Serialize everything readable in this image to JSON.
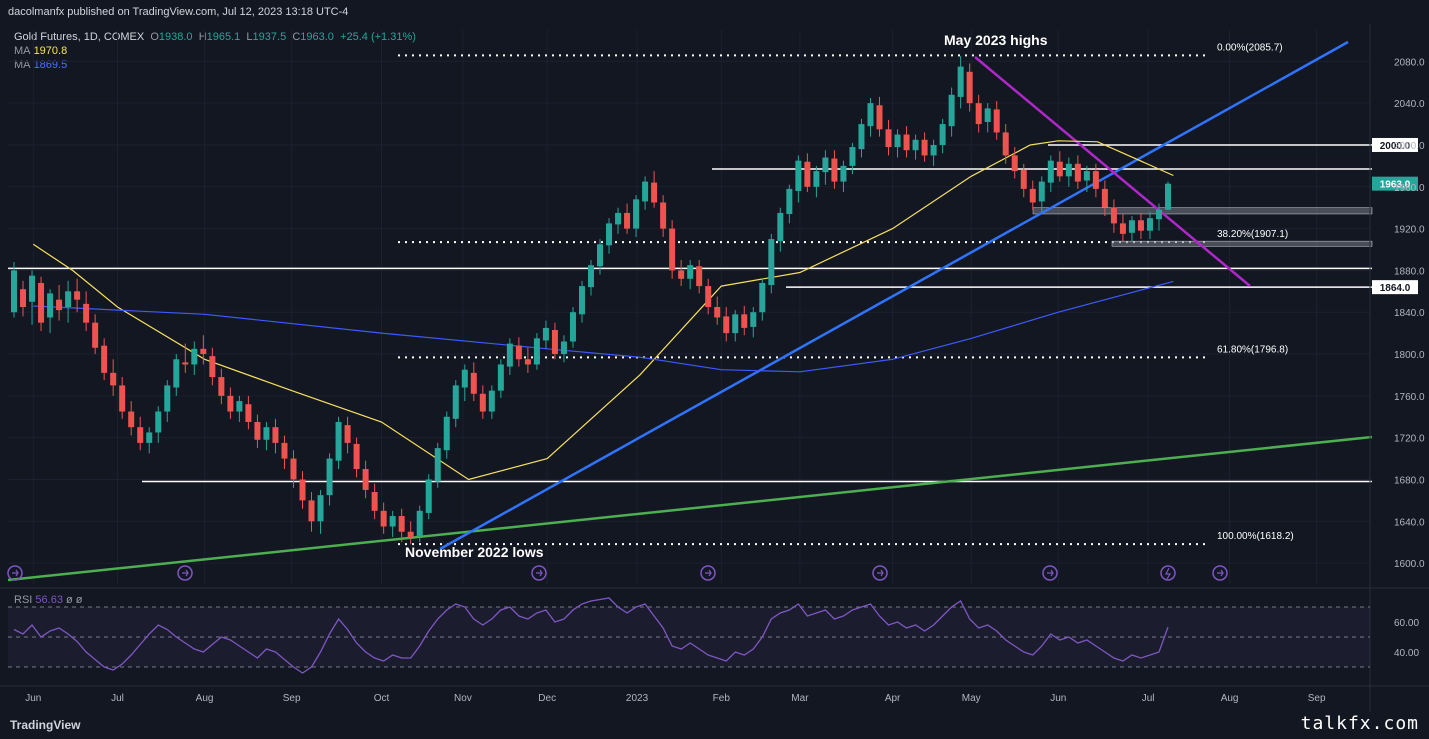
{
  "header": {
    "published": "dacolmanfx published on TradingView.com, Jul 12, 2023 13:18 UTC-4"
  },
  "legend": {
    "symbol": "Gold Futures, 1D, COMEX",
    "o_label": "O",
    "o": "1938.0",
    "h_label": "H",
    "h": "1965.1",
    "l_label": "L",
    "l": "1937.5",
    "c_label": "C",
    "c": "1963.0",
    "change": "+25.4 (+1.31%)",
    "ma1_label": "MA",
    "ma1": "1970.8",
    "ma2_label": "MA",
    "ma2": "1869.5"
  },
  "rsi_legend": {
    "label": "RSI",
    "value": "56.63",
    "extra": "ø  ø"
  },
  "footer": {
    "logo": "TradingView",
    "watermark": "talkfx.com"
  },
  "colors": {
    "background": "#131722",
    "up": "#26a69a",
    "down": "#ef5350",
    "ma50": "#f7e05c",
    "ma200": "#3d5afe",
    "uptrend": "#2f74ff",
    "downtrend": "#b027c9",
    "longtrend": "#4caf50",
    "rsi": "#7e57c2"
  },
  "chart_data": {
    "type": "candlestick",
    "title": "Gold Futures, 1D, COMEX",
    "price_axis": {
      "ylim": [
        1580,
        2110
      ],
      "ticks": [
        1600.0,
        1640.0,
        1680.0,
        1720.0,
        1760.0,
        1800.0,
        1840.0,
        1880.0,
        1920.0,
        1960.0,
        2000.0,
        2040.0,
        2080.0
      ]
    },
    "time_axis": {
      "labels": [
        "Jun",
        "Jul",
        "Aug",
        "Sep",
        "Oct",
        "Nov",
        "Dec",
        "2023",
        "Feb",
        "Mar",
        "Apr",
        "May",
        "Jun",
        "Jul",
        "Aug",
        "Sep"
      ]
    },
    "current_price": "1963.0",
    "price_labels": [
      "2000.0",
      "1864.0"
    ],
    "fibonacci": [
      {
        "label": "0.00%(2085.7)",
        "value": 2085.7
      },
      {
        "label": "38.20%(1907.1)",
        "value": 1907.1
      },
      {
        "label": "61.80%(1796.8)",
        "value": 1796.8
      },
      {
        "label": "100.00%(1618.2)",
        "value": 1618.2
      }
    ],
    "horizontal_levels": [
      2000.0,
      1977.0,
      1882.0,
      1864.0,
      1678.0
    ],
    "zones": [
      [
        1934,
        1940
      ],
      [
        1903,
        1908
      ]
    ],
    "annotations": [
      "May 2023 highs",
      "November 2022 lows"
    ],
    "series": [
      {
        "name": "MA",
        "last": 1970.8,
        "points": [
          [
            "Jun 1 2022",
            1905
          ],
          [
            "Jun 15 2022",
            1880
          ],
          [
            "Jul 1 2022",
            1845
          ],
          [
            "Aug 1 2022",
            1795
          ],
          [
            "Sep 1 2022",
            1765
          ],
          [
            "Oct 3 2022",
            1735
          ],
          [
            "Nov 3 2022",
            1680
          ],
          [
            "Dec 1 2022",
            1700
          ],
          [
            "Jan 3 2023",
            1780
          ],
          [
            "Feb 1 2023",
            1865
          ],
          [
            "Mar 1 2023",
            1878
          ],
          [
            "Apr 3 2023",
            1920
          ],
          [
            "May 1 2023",
            1970
          ],
          [
            "May 22 2023",
            2000
          ],
          [
            "Jun 1 2023",
            2004
          ],
          [
            "Jun 15 2023",
            2003
          ],
          [
            "Jul 12 2023",
            1970.8
          ]
        ]
      },
      {
        "name": "MA",
        "last": 1869.5,
        "points": [
          [
            "Jun 1 2022",
            1846
          ],
          [
            "Aug 1 2022",
            1838
          ],
          [
            "Oct 3 2022",
            1820
          ],
          [
            "Dec 1 2022",
            1805
          ],
          [
            "Jan 3 2023",
            1797
          ],
          [
            "Feb 1 2023",
            1785
          ],
          [
            "Mar 1 2023",
            1783
          ],
          [
            "Apr 3 2023",
            1795
          ],
          [
            "May 1 2023",
            1815
          ],
          [
            "Jun 1 2023",
            1840
          ],
          [
            "Jul 12 2023",
            1869.5
          ]
        ]
      }
    ],
    "candles": [
      [
        1840,
        1880,
        1860,
        1888,
        1835
      ],
      [
        1862,
        1845,
        1868,
        1870,
        1836
      ],
      [
        1850,
        1875,
        1835,
        1880,
        1828
      ],
      [
        1868,
        1830,
        1872,
        1874,
        1822
      ],
      [
        1835,
        1858,
        1830,
        1862,
        1820
      ],
      [
        1852,
        1842,
        1860,
        1866,
        1832
      ],
      [
        1845,
        1860,
        1838,
        1870,
        1830
      ],
      [
        1860,
        1852,
        1870,
        1872,
        1840
      ],
      [
        1848,
        1830,
        1856,
        1860,
        1822
      ],
      [
        1830,
        1806,
        1835,
        1838,
        1800
      ],
      [
        1808,
        1782,
        1812,
        1815,
        1775
      ],
      [
        1782,
        1770,
        1790,
        1795,
        1760
      ],
      [
        1770,
        1745,
        1775,
        1778,
        1738
      ],
      [
        1745,
        1730,
        1750,
        1755,
        1722
      ],
      [
        1730,
        1715,
        1735,
        1740,
        1708
      ],
      [
        1715,
        1725,
        1710,
        1730,
        1705
      ],
      [
        1725,
        1745,
        1720,
        1750,
        1715
      ],
      [
        1745,
        1770,
        1740,
        1775,
        1735
      ],
      [
        1768,
        1795,
        1765,
        1800,
        1760
      ],
      [
        1792,
        1790,
        1805,
        1810,
        1782
      ],
      [
        1790,
        1805,
        1785,
        1812,
        1780
      ],
      [
        1805,
        1800,
        1815,
        1818,
        1790
      ],
      [
        1798,
        1778,
        1802,
        1806,
        1770
      ],
      [
        1778,
        1760,
        1782,
        1786,
        1752
      ],
      [
        1760,
        1745,
        1765,
        1768,
        1738
      ],
      [
        1745,
        1755,
        1740,
        1760,
        1735
      ],
      [
        1752,
        1735,
        1756,
        1760,
        1728
      ],
      [
        1735,
        1718,
        1740,
        1742,
        1710
      ],
      [
        1718,
        1730,
        1712,
        1735,
        1708
      ],
      [
        1730,
        1715,
        1734,
        1738,
        1705
      ],
      [
        1715,
        1700,
        1720,
        1722,
        1690
      ],
      [
        1700,
        1680,
        1705,
        1708,
        1672
      ],
      [
        1680,
        1660,
        1685,
        1688,
        1652
      ],
      [
        1660,
        1640,
        1665,
        1668,
        1630
      ],
      [
        1640,
        1665,
        1635,
        1670,
        1628
      ],
      [
        1665,
        1700,
        1660,
        1705,
        1655
      ],
      [
        1698,
        1735,
        1692,
        1740,
        1690
      ],
      [
        1732,
        1715,
        1738,
        1740,
        1705
      ],
      [
        1714,
        1690,
        1718,
        1720,
        1682
      ],
      [
        1690,
        1670,
        1695,
        1698,
        1662
      ],
      [
        1668,
        1650,
        1672,
        1676,
        1642
      ],
      [
        1650,
        1635,
        1655,
        1658,
        1628
      ],
      [
        1635,
        1645,
        1628,
        1650,
        1625
      ],
      [
        1645,
        1630,
        1650,
        1652,
        1620
      ],
      [
        1630,
        1625,
        1636,
        1640,
        1618
      ],
      [
        1626,
        1650,
        1622,
        1655,
        1620
      ],
      [
        1648,
        1680,
        1645,
        1685,
        1642
      ],
      [
        1678,
        1710,
        1675,
        1715,
        1672
      ],
      [
        1708,
        1740,
        1704,
        1745,
        1700
      ],
      [
        1738,
        1770,
        1734,
        1775,
        1730
      ],
      [
        1768,
        1785,
        1760,
        1790,
        1755
      ],
      [
        1782,
        1762,
        1788,
        1792,
        1755
      ],
      [
        1762,
        1745,
        1768,
        1770,
        1738
      ],
      [
        1745,
        1765,
        1740,
        1770,
        1738
      ],
      [
        1765,
        1790,
        1760,
        1795,
        1758
      ],
      [
        1788,
        1810,
        1784,
        1815,
        1780
      ],
      [
        1808,
        1795,
        1812,
        1816,
        1788
      ],
      [
        1795,
        1790,
        1800,
        1806,
        1782
      ],
      [
        1790,
        1815,
        1786,
        1820,
        1785
      ],
      [
        1813,
        1825,
        1808,
        1832,
        1805
      ],
      [
        1823,
        1800,
        1828,
        1830,
        1795
      ],
      [
        1800,
        1812,
        1795,
        1818,
        1792
      ],
      [
        1812,
        1840,
        1808,
        1845,
        1806
      ],
      [
        1838,
        1865,
        1834,
        1870,
        1830
      ],
      [
        1864,
        1885,
        1860,
        1890,
        1856
      ],
      [
        1884,
        1905,
        1880,
        1910,
        1876
      ],
      [
        1904,
        1925,
        1900,
        1930,
        1896
      ],
      [
        1924,
        1935,
        1918,
        1940,
        1915
      ],
      [
        1935,
        1920,
        1940,
        1944,
        1915
      ],
      [
        1920,
        1948,
        1916,
        1952,
        1912
      ],
      [
        1946,
        1965,
        1942,
        1970,
        1938
      ],
      [
        1964,
        1945,
        1968,
        1975,
        1940
      ],
      [
        1945,
        1920,
        1950,
        1952,
        1912
      ],
      [
        1920,
        1880,
        1925,
        1928,
        1872
      ],
      [
        1880,
        1872,
        1888,
        1890,
        1865
      ],
      [
        1872,
        1885,
        1866,
        1890,
        1862
      ],
      [
        1884,
        1865,
        1888,
        1890,
        1858
      ],
      [
        1865,
        1845,
        1870,
        1872,
        1838
      ],
      [
        1845,
        1835,
        1852,
        1855,
        1828
      ],
      [
        1836,
        1820,
        1842,
        1845,
        1812
      ],
      [
        1820,
        1838,
        1815,
        1842,
        1812
      ],
      [
        1838,
        1825,
        1842,
        1846,
        1818
      ],
      [
        1826,
        1840,
        1820,
        1845,
        1816
      ],
      [
        1840,
        1868,
        1836,
        1872,
        1832
      ],
      [
        1866,
        1910,
        1862,
        1915,
        1858
      ],
      [
        1908,
        1935,
        1902,
        1940,
        1898
      ],
      [
        1934,
        1958,
        1928,
        1962,
        1925
      ],
      [
        1956,
        1985,
        1950,
        1990,
        1945
      ],
      [
        1984,
        1960,
        1990,
        1992,
        1955
      ],
      [
        1960,
        1975,
        1954,
        1980,
        1950
      ],
      [
        1974,
        1988,
        1968,
        1995,
        1962
      ],
      [
        1987,
        1965,
        1992,
        1995,
        1958
      ],
      [
        1965,
        1980,
        1960,
        1985,
        1955
      ],
      [
        1980,
        1998,
        1975,
        2002,
        1972
      ],
      [
        1996,
        2020,
        1992,
        2025,
        1988
      ],
      [
        2018,
        2040,
        2012,
        2045,
        2008
      ],
      [
        2038,
        2015,
        2042,
        2046,
        2008
      ],
      [
        2015,
        1998,
        2020,
        2024,
        1990
      ],
      [
        1998,
        2010,
        1992,
        2015,
        1988
      ],
      [
        2010,
        1995,
        2015,
        2018,
        1988
      ],
      [
        1995,
        2005,
        1990,
        2010,
        1986
      ],
      [
        2005,
        1990,
        2010,
        2012,
        1984
      ],
      [
        1990,
        2000,
        1984,
        2005,
        1980
      ],
      [
        2000,
        2020,
        1995,
        2025,
        1992
      ],
      [
        2018,
        2048,
        2012,
        2055,
        2008
      ],
      [
        2046,
        2075,
        2040,
        2085,
        2035
      ],
      [
        2070,
        2040,
        2075,
        2078,
        2032
      ],
      [
        2040,
        2020,
        2045,
        2048,
        2012
      ],
      [
        2022,
        2035,
        2016,
        2040,
        2012
      ],
      [
        2034,
        2012,
        2038,
        2042,
        2005
      ],
      [
        2012,
        1990,
        2016,
        2020,
        1982
      ],
      [
        1990,
        1975,
        1995,
        1998,
        1968
      ],
      [
        1976,
        1958,
        1980,
        1982,
        1950
      ],
      [
        1958,
        1945,
        1962,
        1966,
        1938
      ],
      [
        1946,
        1965,
        1940,
        1970,
        1936
      ],
      [
        1964,
        1985,
        1958,
        1990,
        1955
      ],
      [
        1984,
        1970,
        1990,
        1994,
        1965
      ],
      [
        1970,
        1982,
        1965,
        1988,
        1960
      ],
      [
        1982,
        1965,
        1986,
        1990,
        1958
      ],
      [
        1966,
        1975,
        1960,
        1980,
        1955
      ],
      [
        1975,
        1958,
        1980,
        1982,
        1950
      ],
      [
        1958,
        1940,
        1962,
        1966,
        1932
      ],
      [
        1940,
        1925,
        1945,
        1948,
        1916
      ],
      [
        1925,
        1915,
        1930,
        1934,
        1908
      ],
      [
        1916,
        1928,
        1910,
        1932,
        1908
      ],
      [
        1928,
        1918,
        1932,
        1935,
        1910
      ],
      [
        1918,
        1930,
        1912,
        1936,
        1910
      ],
      [
        1929,
        1938,
        1922,
        1944,
        1918
      ],
      [
        1938,
        1963,
        1937.5,
        1965.1,
        1937.5
      ]
    ],
    "rsi": {
      "value": 56.63,
      "ticks": [
        60.0,
        40.0
      ],
      "band": [
        30,
        70
      ],
      "values": [
        55,
        52,
        58,
        50,
        54,
        56,
        52,
        47,
        40,
        35,
        30,
        28,
        32,
        38,
        45,
        52,
        58,
        55,
        50,
        46,
        42,
        40,
        45,
        50,
        48,
        44,
        40,
        36,
        42,
        40,
        35,
        30,
        26,
        30,
        40,
        52,
        62,
        55,
        46,
        40,
        36,
        34,
        38,
        36,
        36,
        44,
        54,
        62,
        68,
        72,
        70,
        62,
        58,
        62,
        68,
        70,
        64,
        62,
        66,
        68,
        60,
        62,
        68,
        72,
        74,
        75,
        76,
        70,
        66,
        70,
        72,
        64,
        56,
        44,
        42,
        46,
        42,
        38,
        36,
        34,
        40,
        38,
        42,
        50,
        62,
        66,
        68,
        72,
        64,
        66,
        68,
        62,
        64,
        68,
        70,
        72,
        64,
        58,
        60,
        56,
        58,
        54,
        58,
        64,
        70,
        74,
        62,
        56,
        58,
        54,
        48,
        44,
        40,
        38,
        44,
        52,
        48,
        50,
        46,
        48,
        44,
        40,
        36,
        34,
        38,
        36,
        38,
        40,
        56.63
      ]
    }
  }
}
